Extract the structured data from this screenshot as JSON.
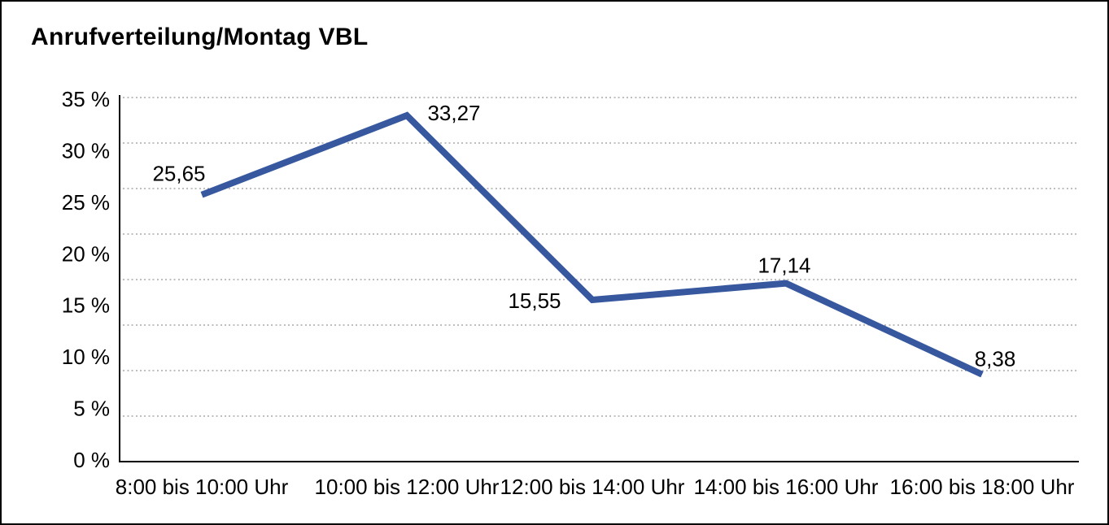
{
  "title": "Anrufverteilung/Montag VBL",
  "chart_data": {
    "type": "line",
    "title": "Anrufverteilung/Montag VBL",
    "categories": [
      "8:00 bis 10:00 Uhr",
      "10:00 bis 12:00 Uhr",
      "12:00 bis 14:00 Uhr",
      "14:00 bis 16:00 Uhr",
      "16:00 bis 18:00 Uhr"
    ],
    "values": [
      25.65,
      33.27,
      15.55,
      17.14,
      8.38
    ],
    "value_labels": [
      "25,65",
      "33,27",
      "15,55",
      "17,14",
      "8,38"
    ],
    "y_ticks": [
      "35 %",
      "30 %",
      "25 %",
      "20 %",
      "15 %",
      "10 %",
      "5 %",
      "0 %"
    ],
    "ylim": [
      0,
      35
    ],
    "xlabel": "",
    "ylabel": "",
    "grid": "horizontal-dotted",
    "legend": "none",
    "colors": {
      "line": "#37589F",
      "text": "#000000",
      "grid": "#7d7d7d",
      "axis": "#000000",
      "background": "#ffffff",
      "border": "#000000"
    }
  }
}
